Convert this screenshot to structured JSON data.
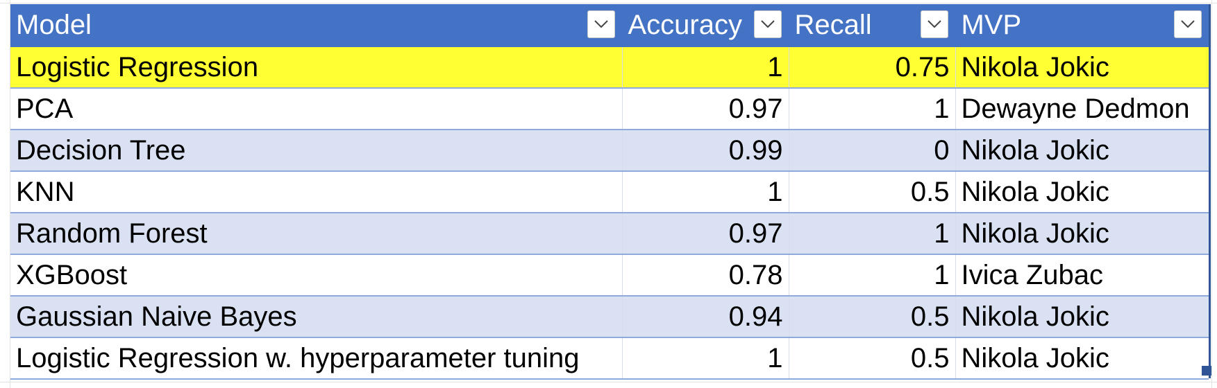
{
  "table": {
    "headers": [
      {
        "label": "Model",
        "align": "left"
      },
      {
        "label": "Accuracy",
        "align": "left"
      },
      {
        "label": "Recall",
        "align": "left"
      },
      {
        "label": "MVP",
        "align": "left"
      }
    ],
    "rows": [
      {
        "model": "Logistic Regression",
        "accuracy": "1",
        "recall": "0.75",
        "mvp": "Nikola Jokic",
        "highlighted": true
      },
      {
        "model": "PCA",
        "accuracy": "0.97",
        "recall": "1",
        "mvp": "Dewayne Dedmon",
        "highlighted": false
      },
      {
        "model": "Decision Tree",
        "accuracy": "0.99",
        "recall": "0",
        "mvp": "Nikola Jokic",
        "highlighted": false
      },
      {
        "model": "KNN",
        "accuracy": "1",
        "recall": "0.5",
        "mvp": "Nikola Jokic",
        "highlighted": false
      },
      {
        "model": "Random Forest",
        "accuracy": "0.97",
        "recall": "1",
        "mvp": "Nikola Jokic",
        "highlighted": false
      },
      {
        "model": "XGBoost",
        "accuracy": "0.78",
        "recall": "1",
        "mvp": "Ivica Zubac",
        "highlighted": false
      },
      {
        "model": "Gaussian Naive Bayes",
        "accuracy": "0.94",
        "recall": "0.5",
        "mvp": "Nikola Jokic",
        "highlighted": false
      },
      {
        "model": "Logistic Regression w. hyperparameter tuning",
        "accuracy": "1",
        "recall": "0.5",
        "mvp": "Nikola Jokic",
        "highlighted": false
      }
    ]
  },
  "colors": {
    "header_bg": "#4472c4",
    "band_bg": "#d9e1f2",
    "highlight_bg": "#ffff33",
    "row_border": "#8ea9db"
  },
  "icons": {
    "filter_dropdown": "chevron-down-icon"
  }
}
